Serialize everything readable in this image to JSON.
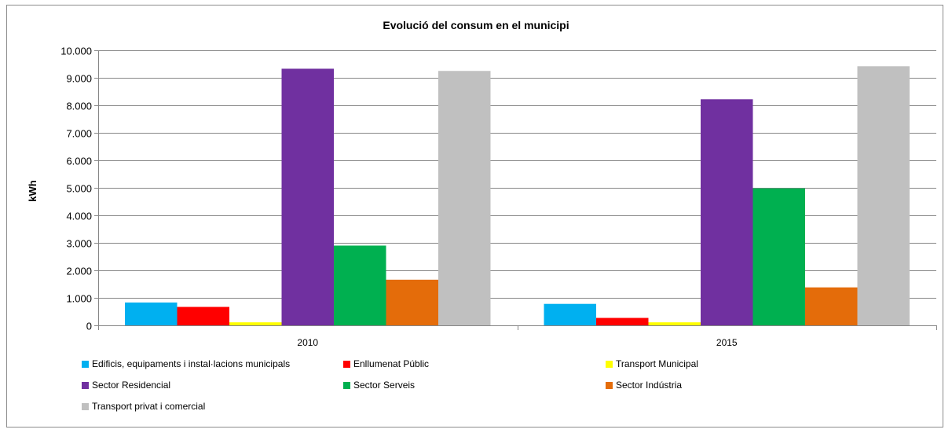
{
  "chart_data": {
    "type": "bar",
    "title": "Evolució del consum  en el municipi",
    "xlabel": "",
    "ylabel": "kWh",
    "ylim": [
      0,
      10000
    ],
    "yticks": [
      0,
      1000,
      2000,
      3000,
      4000,
      5000,
      6000,
      7000,
      8000,
      9000,
      10000
    ],
    "ytick_labels": [
      "0",
      "1.000",
      "2.000",
      "3.000",
      "4.000",
      "5.000",
      "6.000",
      "7.000",
      "8.000",
      "9.000",
      "10.000"
    ],
    "grid": true,
    "legend_position": "bottom",
    "categories": [
      "2010",
      "2015"
    ],
    "series": [
      {
        "name": "Edificis, equipaments i instal·lacions municipals",
        "color": "#00b0f0",
        "values": [
          830,
          780
        ]
      },
      {
        "name": "Enllumenat Públic",
        "color": "#ff0000",
        "values": [
          670,
          270
        ]
      },
      {
        "name": "Transport Municipal",
        "color": "#ffff00",
        "values": [
          110,
          110
        ]
      },
      {
        "name": "Sector Residencial",
        "color": "#7030a0",
        "values": [
          9330,
          8220
        ]
      },
      {
        "name": "Sector Serveis",
        "color": "#00b050",
        "values": [
          2900,
          4980
        ]
      },
      {
        "name": "Sector Indústria",
        "color": "#e46c0a",
        "values": [
          1660,
          1380
        ]
      },
      {
        "name": "Transport privat i comercial",
        "color": "#c0c0c0",
        "values": [
          9250,
          9420
        ]
      }
    ]
  }
}
